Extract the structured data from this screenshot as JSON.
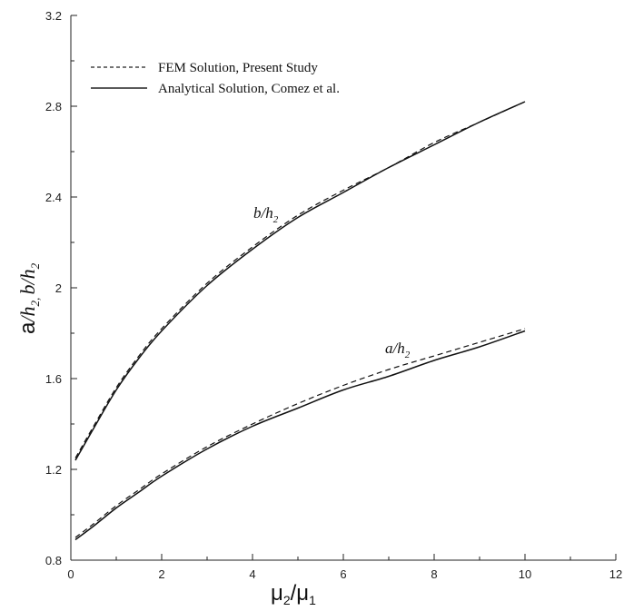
{
  "chart_data": {
    "type": "line",
    "xlim": [
      0,
      12
    ],
    "ylim": [
      0.8,
      3.2
    ],
    "xticks": [
      "0",
      "2",
      "4",
      "6",
      "8",
      "10",
      "12"
    ],
    "yticks": [
      "0.8",
      "1.2",
      "1.6",
      "2",
      "2.4",
      "2.8",
      "3.2"
    ],
    "xlabel": {
      "main": "μ",
      "sub1": "2",
      "slash": "/",
      "main2": "μ",
      "sub2": "1"
    },
    "ylabel": {
      "a": "a",
      "h1": "/h",
      "s1": "2",
      "sep": ", ",
      "b": "b",
      "h2": "/h",
      "s2": "2"
    },
    "legend": [
      {
        "label": "FEM Solution, Present Study",
        "style": "dashed"
      },
      {
        "label": "Analytical Solution, Comez et al.",
        "style": "solid"
      }
    ],
    "annotations": [
      {
        "main": "b/h",
        "sub": "2",
        "x": 4.2,
        "y": 2.28
      },
      {
        "main": "a/h",
        "sub": "2",
        "x": 7.0,
        "y": 1.64
      }
    ],
    "x": [
      0.1,
      0.5,
      1,
      1.5,
      2,
      3,
      4,
      5,
      6,
      7,
      8,
      9,
      10
    ],
    "series": [
      {
        "name": "FEM Solution, Present Study",
        "curve": "b/h2",
        "style": "dashed",
        "values": [
          1.25,
          1.39,
          1.56,
          1.7,
          1.82,
          2.02,
          2.18,
          2.32,
          2.43,
          2.53,
          2.64,
          2.73,
          2.82
        ]
      },
      {
        "name": "Analytical Solution, Comez et al.",
        "curve": "b/h2",
        "style": "solid",
        "values": [
          1.24,
          1.38,
          1.55,
          1.69,
          1.81,
          2.01,
          2.17,
          2.31,
          2.42,
          2.53,
          2.63,
          2.73,
          2.82
        ]
      },
      {
        "name": "FEM Solution, Present Study",
        "curve": "a/h2",
        "style": "dashed",
        "values": [
          0.9,
          0.96,
          1.04,
          1.11,
          1.18,
          1.3,
          1.4,
          1.49,
          1.57,
          1.64,
          1.7,
          1.76,
          1.82
        ]
      },
      {
        "name": "Analytical Solution, Comez et al.",
        "curve": "a/h2",
        "style": "solid",
        "values": [
          0.89,
          0.95,
          1.03,
          1.1,
          1.17,
          1.29,
          1.39,
          1.47,
          1.55,
          1.61,
          1.68,
          1.74,
          1.81
        ]
      }
    ]
  }
}
